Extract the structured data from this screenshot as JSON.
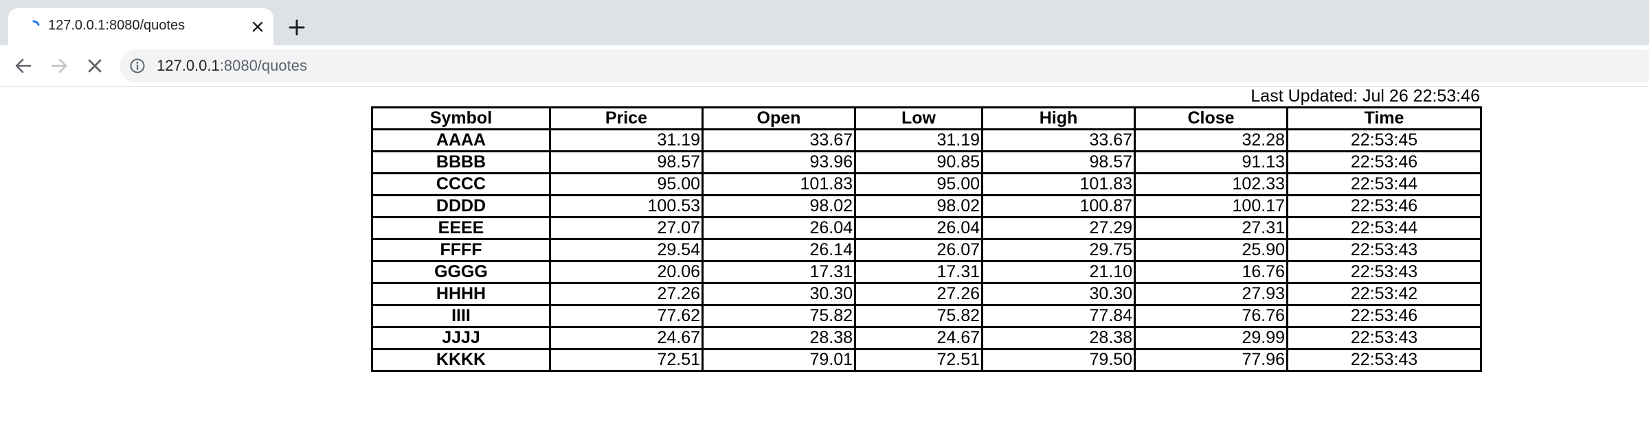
{
  "browser": {
    "tab_title": "127.0.0.1:8080/quotes",
    "url_host": "127.0.0.1",
    "url_rest": ":8080/quotes",
    "icons": [
      "loading-spinner-icon",
      "close-icon",
      "plus-icon",
      "back-arrow-icon",
      "forward-arrow-icon",
      "stop-icon",
      "info-icon"
    ]
  },
  "page": {
    "last_updated_label": "Last Updated: Jul 26 22:53:46"
  },
  "table": {
    "headers": [
      "Symbol",
      "Price",
      "Open",
      "Low",
      "High",
      "Close",
      "Time"
    ],
    "rows": [
      {
        "symbol": "AAAA",
        "price": "31.19",
        "open": "33.67",
        "low": "31.19",
        "high": "33.67",
        "close": "32.28",
        "time": "22:53:45"
      },
      {
        "symbol": "BBBB",
        "price": "98.57",
        "open": "93.96",
        "low": "90.85",
        "high": "98.57",
        "close": "91.13",
        "time": "22:53:46"
      },
      {
        "symbol": "CCCC",
        "price": "95.00",
        "open": "101.83",
        "low": "95.00",
        "high": "101.83",
        "close": "102.33",
        "time": "22:53:44"
      },
      {
        "symbol": "DDDD",
        "price": "100.53",
        "open": "98.02",
        "low": "98.02",
        "high": "100.87",
        "close": "100.17",
        "time": "22:53:46"
      },
      {
        "symbol": "EEEE",
        "price": "27.07",
        "open": "26.04",
        "low": "26.04",
        "high": "27.29",
        "close": "27.31",
        "time": "22:53:44"
      },
      {
        "symbol": "FFFF",
        "price": "29.54",
        "open": "26.14",
        "low": "26.07",
        "high": "29.75",
        "close": "25.90",
        "time": "22:53:43"
      },
      {
        "symbol": "GGGG",
        "price": "20.06",
        "open": "17.31",
        "low": "17.31",
        "high": "21.10",
        "close": "16.76",
        "time": "22:53:43"
      },
      {
        "symbol": "HHHH",
        "price": "27.26",
        "open": "30.30",
        "low": "27.26",
        "high": "30.30",
        "close": "27.93",
        "time": "22:53:42"
      },
      {
        "symbol": "IIII",
        "price": "77.62",
        "open": "75.82",
        "low": "75.82",
        "high": "77.84",
        "close": "76.76",
        "time": "22:53:46"
      },
      {
        "symbol": "JJJJ",
        "price": "24.67",
        "open": "28.38",
        "low": "24.67",
        "high": "28.38",
        "close": "29.99",
        "time": "22:53:43"
      },
      {
        "symbol": "KKKK",
        "price": "72.51",
        "open": "79.01",
        "low": "72.51",
        "high": "79.50",
        "close": "77.96",
        "time": "22:53:43"
      }
    ]
  }
}
